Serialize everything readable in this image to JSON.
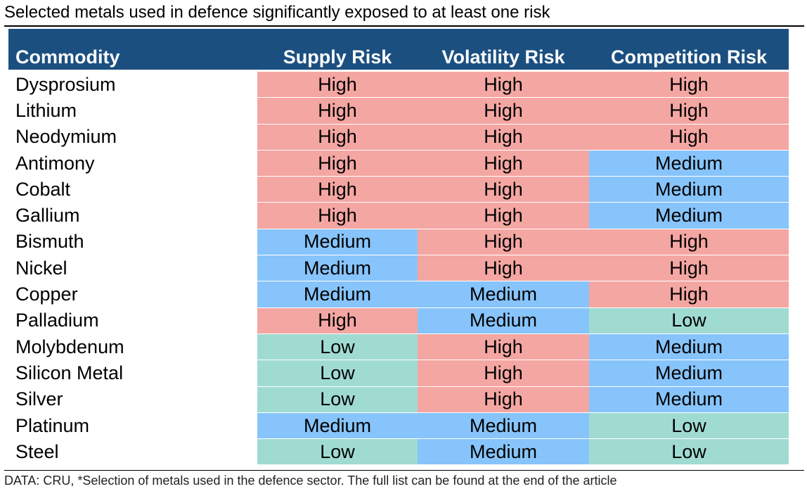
{
  "title": "Selected metals used in defence significantly exposed to at least one risk",
  "footnote": "DATA: CRU, *Selection of metals used in the defence sector. The full list can be found at the end of the article",
  "colors": {
    "header_bg": "#1b4f80",
    "High": "#f4a6a2",
    "Medium": "#87c4fb",
    "Low": "#a0dbd2"
  },
  "chart_data": {
    "type": "table",
    "columns": [
      "Commodity",
      "Supply Risk",
      "Volatility Risk",
      "Competition Risk"
    ],
    "rows": [
      [
        "Dysprosium",
        "High",
        "High",
        "High"
      ],
      [
        "Lithium",
        "High",
        "High",
        "High"
      ],
      [
        "Neodymium",
        "High",
        "High",
        "High"
      ],
      [
        "Antimony",
        "High",
        "High",
        "Medium"
      ],
      [
        "Cobalt",
        "High",
        "High",
        "Medium"
      ],
      [
        "Gallium",
        "High",
        "High",
        "Medium"
      ],
      [
        "Bismuth",
        "Medium",
        "High",
        "High"
      ],
      [
        "Nickel",
        "Medium",
        "High",
        "High"
      ],
      [
        "Copper",
        "Medium",
        "Medium",
        "High"
      ],
      [
        "Palladium",
        "High",
        "Medium",
        "Low"
      ],
      [
        "Molybdenum",
        "Low",
        "High",
        "Medium"
      ],
      [
        "Silicon Metal",
        "Low",
        "High",
        "Medium"
      ],
      [
        "Silver",
        "Low",
        "High",
        "Medium"
      ],
      [
        "Platinum",
        "Medium",
        "Medium",
        "Low"
      ],
      [
        "Steel",
        "Low",
        "Medium",
        "Low"
      ]
    ]
  }
}
